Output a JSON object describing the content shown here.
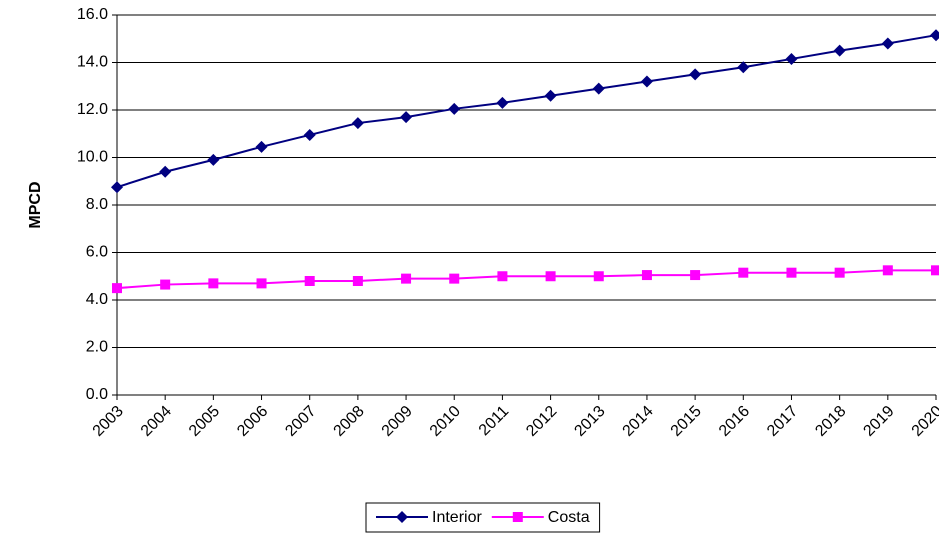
{
  "chart_data": {
    "type": "line",
    "y_label": "MPCD",
    "categories": [
      "2003",
      "2004",
      "2005",
      "2006",
      "2007",
      "2008",
      "2009",
      "2010",
      "2011",
      "2012",
      "2013",
      "2014",
      "2015",
      "2016",
      "2017",
      "2018",
      "2019",
      "2020"
    ],
    "series": [
      {
        "name": "Interior",
        "color": "#000080",
        "marker": "diamond",
        "values": [
          8.75,
          9.4,
          9.9,
          10.45,
          10.95,
          11.45,
          11.7,
          12.05,
          12.3,
          12.6,
          12.9,
          13.2,
          13.5,
          13.8,
          14.15,
          14.5,
          14.8,
          15.15
        ]
      },
      {
        "name": "Costa",
        "color": "#ff00ff",
        "marker": "square",
        "values": [
          4.5,
          4.65,
          4.7,
          4.7,
          4.8,
          4.8,
          4.9,
          4.9,
          5.0,
          5.0,
          5.0,
          5.05,
          5.05,
          5.15,
          5.15,
          5.15,
          5.25,
          5.25
        ]
      }
    ],
    "ylim": [
      0,
      16
    ],
    "yticks": [
      {
        "value": 0,
        "label": "0.0"
      },
      {
        "value": 2,
        "label": "2.0"
      },
      {
        "value": 4,
        "label": "4.0"
      },
      {
        "value": 6,
        "label": "6.0"
      },
      {
        "value": 8,
        "label": "8.0"
      },
      {
        "value": 10,
        "label": "10.0"
      },
      {
        "value": 12,
        "label": "12.0"
      },
      {
        "value": 14,
        "label": "14.0"
      },
      {
        "value": 16,
        "label": "16.0"
      }
    ],
    "grid": true,
    "legend": "bottom"
  }
}
